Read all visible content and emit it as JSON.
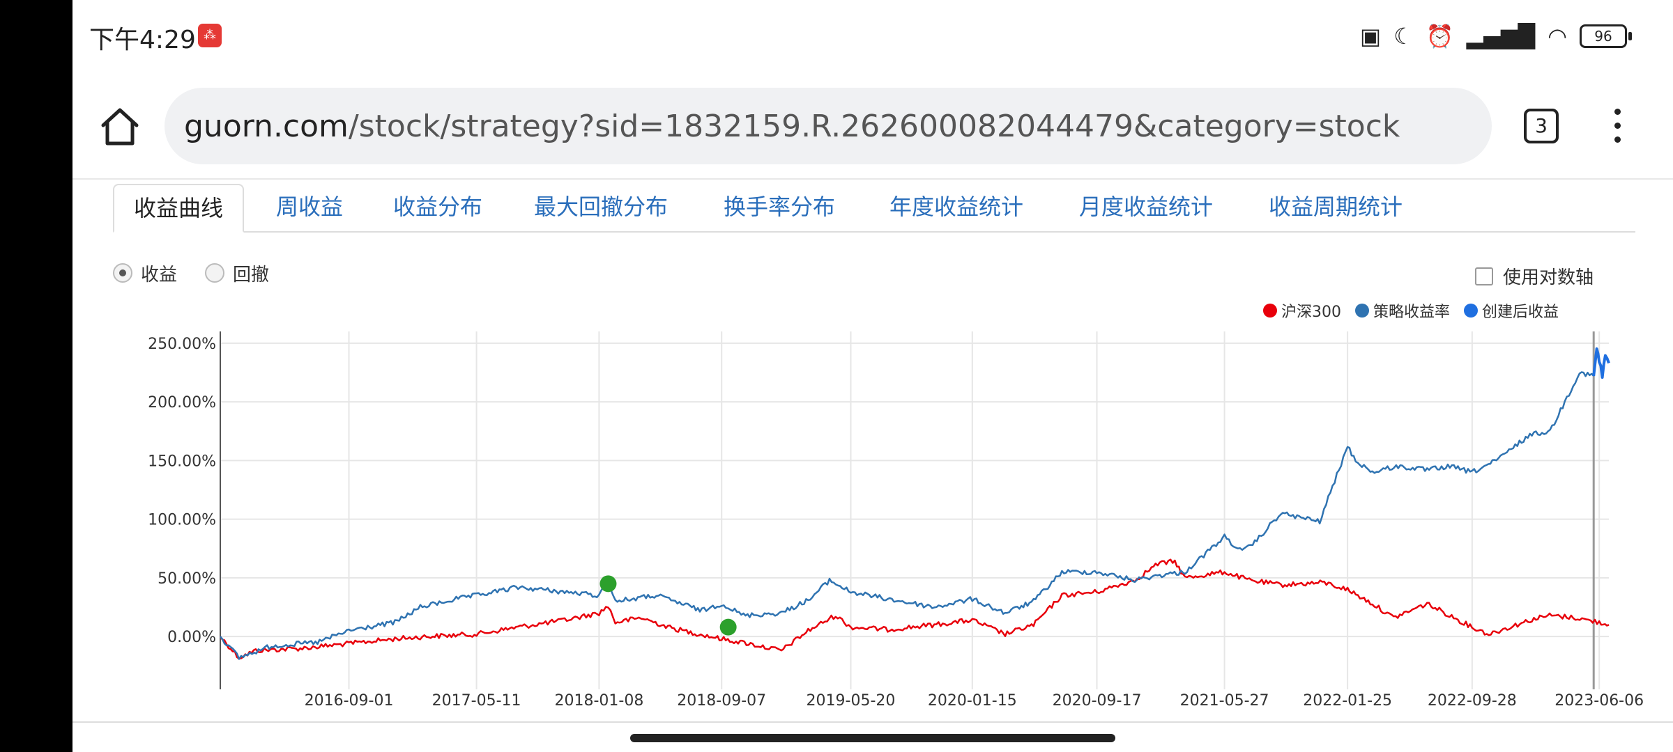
{
  "status_bar": {
    "time": "下午4:29",
    "app_badge": "⁂",
    "icons": [
      "nfc-icon",
      "moon-icon",
      "alarm-icon",
      "signal-icon",
      "wifi-icon"
    ],
    "battery": "96"
  },
  "browser": {
    "url_domain": "guorn.com",
    "url_path": "/stock/strategy?sid=1832159.R.262600082044479&category=stock",
    "tab_count": "3"
  },
  "tabs": [
    {
      "label": "收益曲线",
      "active": true
    },
    {
      "label": "周收益"
    },
    {
      "label": "收益分布"
    },
    {
      "label": "最大回撤分布"
    },
    {
      "label": "换手率分布"
    },
    {
      "label": "年度收益统计"
    },
    {
      "label": "月度收益统计"
    },
    {
      "label": "收益周期统计"
    }
  ],
  "radios": [
    {
      "label": "收益",
      "checked": true
    },
    {
      "label": "回撤",
      "checked": false
    }
  ],
  "log_axis_label": "使用对数轴",
  "colors": {
    "hs300": "#e8000b",
    "strategy": "#2f73b1",
    "post_creation": "#1f6fe0",
    "marker": "#2ca02c",
    "tab_link": "#2a6ebb"
  },
  "chart_data": {
    "type": "line",
    "title": "",
    "xlabel": "",
    "ylabel": "",
    "ylim": [
      -0.45,
      2.6
    ],
    "y_ticks": [
      "250.00%",
      "200.00%",
      "150.00%",
      "100.00%",
      "50.00%",
      "0.00%"
    ],
    "y_tick_values": [
      2.5,
      2.0,
      1.5,
      1.0,
      0.5,
      0.0
    ],
    "x_ticks": [
      "2016-09-01",
      "2017-05-11",
      "2018-01-08",
      "2018-09-07",
      "2019-05-20",
      "2020-01-15",
      "2020-09-17",
      "2021-05-27",
      "2022-01-25",
      "2022-09-28",
      "2023-06-06"
    ],
    "x_range": [
      "2015-12-22",
      "2023-06-25"
    ],
    "legend": [
      {
        "name": "沪深300"
      },
      {
        "name": "策略收益率"
      },
      {
        "name": "创建后收益"
      }
    ],
    "series": [
      {
        "name": "沪深300",
        "dates": [
          "2015-12-22",
          "2016-01-28",
          "2016-03-01",
          "2016-06-01",
          "2016-09-01",
          "2016-12-01",
          "2017-02-01",
          "2017-05-11",
          "2017-08-01",
          "2017-11-01",
          "2018-01-08",
          "2018-01-26",
          "2018-02-09",
          "2018-04-01",
          "2018-06-01",
          "2018-09-07",
          "2018-10-30",
          "2019-01-03",
          "2019-02-25",
          "2019-04-20",
          "2019-05-20",
          "2019-08-01",
          "2019-11-01",
          "2020-01-15",
          "2020-03-20",
          "2020-05-15",
          "2020-07-10",
          "2020-09-17",
          "2020-12-01",
          "2021-01-15",
          "2021-02-18",
          "2021-03-10",
          "2021-05-27",
          "2021-07-15",
          "2021-09-15",
          "2021-12-10",
          "2022-01-25",
          "2022-03-15",
          "2022-04-26",
          "2022-07-01",
          "2022-09-28",
          "2022-10-31",
          "2023-01-28",
          "2023-02-28",
          "2023-04-20",
          "2023-06-06",
          "2023-06-25"
        ],
        "values": [
          0.0,
          -0.18,
          -0.12,
          -0.1,
          -0.06,
          -0.02,
          0.0,
          0.02,
          0.08,
          0.14,
          0.2,
          0.26,
          0.12,
          0.16,
          0.07,
          -0.02,
          -0.06,
          -0.12,
          0.05,
          0.18,
          0.08,
          0.06,
          0.1,
          0.14,
          0.02,
          0.1,
          0.35,
          0.38,
          0.48,
          0.62,
          0.64,
          0.5,
          0.55,
          0.48,
          0.44,
          0.46,
          0.4,
          0.28,
          0.16,
          0.28,
          0.08,
          0.02,
          0.15,
          0.18,
          0.16,
          0.12,
          0.1
        ]
      },
      {
        "name": "策略收益率",
        "dates": [
          "2015-12-22",
          "2016-01-28",
          "2016-04-01",
          "2016-07-01",
          "2016-09-01",
          "2016-12-01",
          "2017-01-20",
          "2017-04-01",
          "2017-05-11",
          "2017-08-01",
          "2017-11-01",
          "2018-01-08",
          "2018-01-26",
          "2018-02-09",
          "2018-05-01",
          "2018-06-20",
          "2018-07-30",
          "2018-09-07",
          "2018-10-20",
          "2019-01-03",
          "2019-03-01",
          "2019-04-08",
          "2019-05-20",
          "2019-08-01",
          "2019-11-01",
          "2020-01-15",
          "2020-03-20",
          "2020-05-15",
          "2020-07-10",
          "2020-09-17",
          "2020-12-01",
          "2021-01-15",
          "2021-03-10",
          "2021-05-27",
          "2021-07-01",
          "2021-07-30",
          "2021-09-15",
          "2021-12-01",
          "2022-01-25",
          "2022-02-10",
          "2022-03-15",
          "2022-05-01",
          "2022-07-01",
          "2022-08-15",
          "2022-09-28",
          "2022-11-15",
          "2023-01-20",
          "2023-03-01",
          "2023-04-28",
          "2023-05-26"
        ],
        "values": [
          0.0,
          -0.18,
          -0.08,
          -0.05,
          0.05,
          0.12,
          0.25,
          0.32,
          0.35,
          0.42,
          0.38,
          0.35,
          0.48,
          0.3,
          0.35,
          0.28,
          0.22,
          0.28,
          0.18,
          0.2,
          0.32,
          0.48,
          0.38,
          0.32,
          0.25,
          0.32,
          0.2,
          0.3,
          0.55,
          0.55,
          0.48,
          0.52,
          0.55,
          0.85,
          0.72,
          0.82,
          1.05,
          0.98,
          1.62,
          1.5,
          1.4,
          1.45,
          1.42,
          1.45,
          1.4,
          1.5,
          1.72,
          1.75,
          2.25,
          2.22
        ]
      },
      {
        "name": "创建后收益",
        "dates": [
          "2023-05-26",
          "2023-06-01",
          "2023-06-06",
          "2023-06-12",
          "2023-06-18",
          "2023-06-25"
        ],
        "values": [
          2.22,
          2.45,
          2.35,
          2.22,
          2.4,
          2.33
        ]
      }
    ],
    "markers": [
      {
        "date": "2018-01-26",
        "value": 0.45
      },
      {
        "date": "2018-09-20",
        "value": 0.08
      }
    ],
    "vertical_line_date": "2023-05-26",
    "grid": true
  }
}
